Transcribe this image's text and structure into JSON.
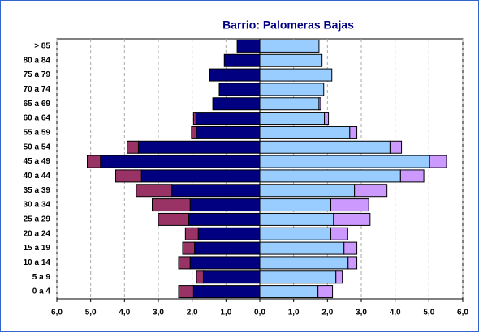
{
  "chart_data": {
    "type": "bar",
    "orientation": "horizontal",
    "stacked": true,
    "title": "Barrio: Palomeras Bajas",
    "categories": [
      "> 85",
      "80 a 84",
      "75 a 79",
      "70 a 74",
      "65 a 69",
      "60 a 64",
      "55 a 59",
      "50 a 54",
      "45 a 49",
      "40 a 44",
      "35 a 39",
      "30 a 34",
      "25 a 29",
      "20 a 24",
      "15 a 19",
      "10 a 14",
      "5 a 9",
      "0 a 4"
    ],
    "series": [
      {
        "color": "#000080",
        "values": [
          -0.67,
          -1.05,
          -1.48,
          -1.2,
          -1.39,
          -1.89,
          -1.87,
          -3.59,
          -4.71,
          -3.5,
          -2.6,
          -2.06,
          -2.1,
          -1.82,
          -1.93,
          -2.06,
          -1.67,
          -1.96
        ]
      },
      {
        "color": "#993366",
        "values": [
          0,
          0,
          0,
          0,
          0,
          -0.07,
          -0.15,
          -0.33,
          -0.39,
          -0.76,
          -1.05,
          -1.12,
          -0.9,
          -0.38,
          -0.35,
          -0.34,
          -0.2,
          -0.44
        ]
      },
      {
        "color": "#99ccff",
        "values": [
          1.75,
          1.84,
          2.13,
          1.89,
          1.75,
          1.91,
          2.66,
          3.85,
          5.02,
          4.16,
          2.8,
          2.1,
          2.18,
          2.1,
          2.49,
          2.61,
          2.25,
          1.72
        ]
      },
      {
        "color": "#cc99ff",
        "values": [
          0,
          0,
          0,
          0,
          0.05,
          0.12,
          0.21,
          0.34,
          0.5,
          0.69,
          0.96,
          1.12,
          1.08,
          0.5,
          0.38,
          0.26,
          0.19,
          0.43
        ]
      }
    ],
    "xlim": [
      -6,
      6
    ],
    "xticks": [
      {
        "value": -6,
        "label": "6,0"
      },
      {
        "value": -5,
        "label": "5,0"
      },
      {
        "value": -4,
        "label": "4,0"
      },
      {
        "value": -3,
        "label": "3,0"
      },
      {
        "value": -2,
        "label": "2,0"
      },
      {
        "value": -1,
        "label": "1,0"
      },
      {
        "value": 0,
        "label": "0,0"
      },
      {
        "value": 1,
        "label": "1,0"
      },
      {
        "value": 2,
        "label": "2,0"
      },
      {
        "value": 3,
        "label": "3,0"
      },
      {
        "value": 4,
        "label": "4,0"
      },
      {
        "value": 5,
        "label": "5,0"
      },
      {
        "value": 6,
        "label": "6,0"
      }
    ],
    "grid": true
  }
}
